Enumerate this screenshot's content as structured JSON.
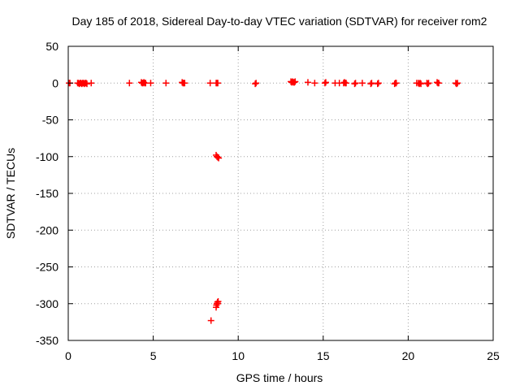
{
  "chart_data": {
    "type": "scatter",
    "title": "Day 185 of 2018, Sidereal Day-to-day VTEC variation (SDTVAR) for receiver rom2",
    "xlabel": "GPS time / hours",
    "ylabel": "SDTVAR / TECUs",
    "xlim": [
      0,
      25
    ],
    "ylim": [
      -350,
      50
    ],
    "xticks": [
      0,
      5,
      10,
      15,
      20,
      25
    ],
    "yticks": [
      50,
      0,
      -50,
      -100,
      -150,
      -200,
      -250,
      -300,
      -350
    ],
    "grid": true,
    "marker": "+",
    "color": "#ff0000",
    "series": [
      {
        "name": "SDTVAR",
        "x": [
          0.05,
          0.1,
          0.55,
          0.6,
          0.65,
          0.7,
          0.75,
          0.8,
          0.85,
          0.9,
          0.95,
          1.0,
          1.05,
          1.1,
          1.35,
          3.6,
          4.3,
          4.35,
          4.4,
          4.45,
          4.5,
          4.55,
          4.85,
          5.75,
          6.7,
          6.75,
          6.8,
          6.85,
          8.35,
          8.7,
          8.75,
          8.8,
          11.0,
          11.05,
          13.1,
          13.15,
          13.2,
          13.25,
          13.3,
          13.35,
          14.1,
          14.5,
          15.1,
          15.15,
          15.7,
          15.95,
          16.2,
          16.25,
          16.3,
          16.35,
          16.85,
          16.9,
          17.3,
          17.8,
          17.85,
          18.2,
          18.25,
          19.2,
          19.25,
          19.3,
          20.5,
          20.6,
          20.65,
          20.7,
          20.75,
          21.1,
          21.15,
          21.2,
          21.7,
          21.75,
          21.8,
          22.8,
          22.85,
          22.9,
          8.7,
          8.75,
          8.8,
          8.85,
          8.7,
          8.72,
          8.75,
          8.78,
          8.8,
          8.82,
          8.4
        ],
        "y": [
          0,
          0,
          0,
          0,
          -1,
          0,
          0,
          -1,
          0,
          0,
          -1,
          0,
          0,
          -1,
          0,
          0,
          1,
          0,
          0,
          1,
          0,
          0,
          0,
          0,
          1,
          0,
          0,
          0,
          0,
          0,
          0,
          0,
          -1,
          0,
          2,
          1,
          2,
          1,
          1,
          2,
          1,
          0,
          0,
          1,
          0,
          0,
          0,
          1,
          0,
          0,
          -1,
          0,
          0,
          -1,
          0,
          -1,
          0,
          -1,
          0,
          0,
          0,
          0,
          -1,
          0,
          -1,
          0,
          -1,
          0,
          1,
          0,
          0,
          0,
          -1,
          0,
          -98,
          -100,
          -101,
          -102,
          -305,
          -302,
          -300,
          -298,
          -300,
          -297,
          -323
        ]
      }
    ]
  }
}
